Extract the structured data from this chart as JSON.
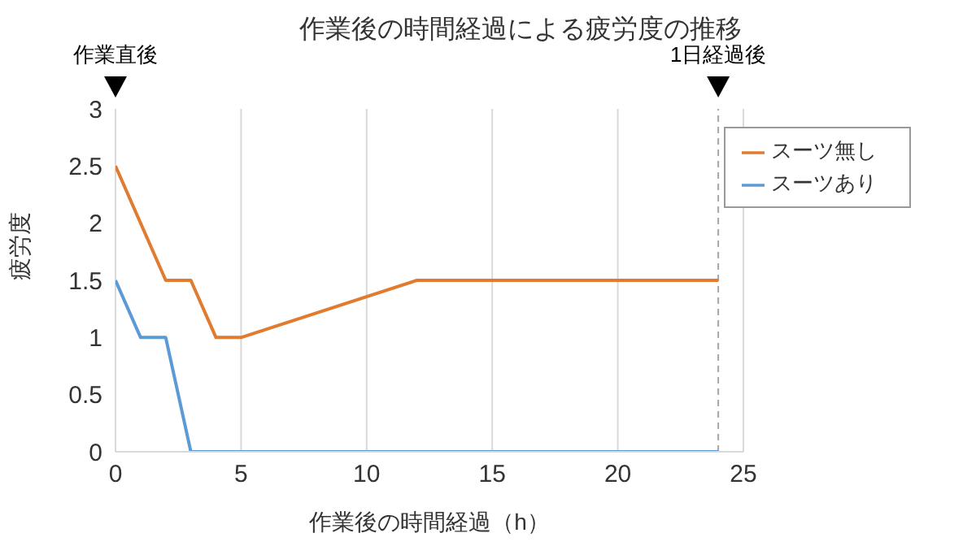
{
  "chart_data": {
    "type": "line",
    "title": "作業後の時間経過による疲労度の推移",
    "xlabel": "作業後の時間経過（h）",
    "ylabel": "疲労度",
    "series": [
      {
        "name": "スーツ無し",
        "color": "#e07b2f",
        "x": [
          0,
          2,
          3,
          4,
          5,
          12,
          24
        ],
        "values": [
          2.5,
          1.5,
          1.5,
          1,
          1,
          1.5,
          1.5
        ]
      },
      {
        "name": "スーツあり",
        "color": "#5b9bd5",
        "x": [
          0,
          1,
          2,
          3,
          24
        ],
        "values": [
          1.5,
          1,
          1,
          0,
          0
        ]
      }
    ],
    "xlim": [
      0,
      25
    ],
    "xticks": [
      0,
      5,
      10,
      15,
      20,
      25
    ],
    "ylim": [
      0,
      3
    ],
    "yticks": [
      0,
      0.5,
      1,
      1.5,
      2,
      2.5,
      3
    ],
    "grid": "x",
    "legend": "top right",
    "line_style": "solid",
    "annotations": [
      "作業直後"
    ],
    "ref_lines": [
      {
        "axis": "x",
        "value": 24,
        "label": "1日経過後",
        "color": "#a6a6a6",
        "line_style": "dashed"
      }
    ]
  }
}
